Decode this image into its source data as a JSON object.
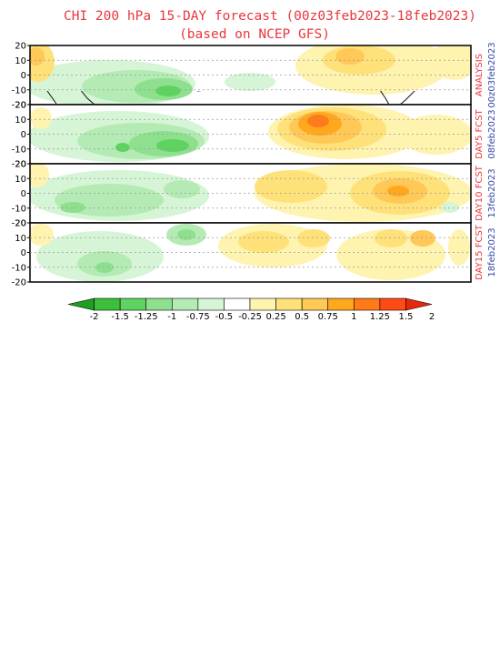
{
  "title": "CHI 200 hPa 15-DAY forecast (00z03feb2023-18feb2023)",
  "subtitle": "(based on NCEP GFS)",
  "y_ticks": [
    "20",
    "10",
    "0",
    "-10",
    "-20"
  ],
  "panels": [
    {
      "label": "ANALYSIS",
      "date": "00z03feb2023"
    },
    {
      "label": "DAY5 FCST",
      "date": "08feb2023"
    },
    {
      "label": "DAY10 FCST",
      "date": "13feb2023"
    },
    {
      "label": "DAY15 FCST",
      "date": "18feb2023"
    }
  ],
  "colorbar": {
    "labels": [
      "-2",
      "-1.5",
      "-1.25",
      "-1",
      "-0.75",
      "-0.5",
      "-0.25",
      "0.25",
      "0.5",
      "0.75",
      "1",
      "1.25",
      "1.5",
      "2"
    ],
    "colors": [
      "#1ea01e",
      "#3cbf3c",
      "#5fd35f",
      "#8ee08e",
      "#b4ebb4",
      "#d6f5d6",
      "#ffffff",
      "#fff3b0",
      "#ffe17a",
      "#ffc857",
      "#ffa81e",
      "#ff7a18",
      "#ff4a14",
      "#e8280a"
    ]
  }
}
